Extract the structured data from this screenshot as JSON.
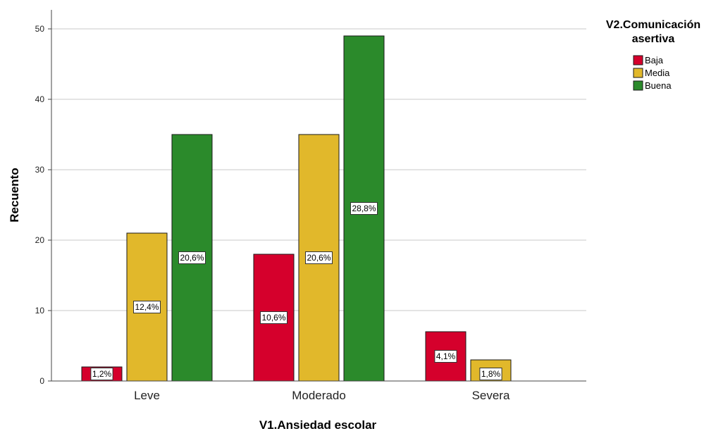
{
  "chart_data": {
    "type": "bar",
    "categories": [
      "Leve",
      "Moderado",
      "Severa"
    ],
    "series": [
      {
        "name": "Baja",
        "color": "#d5002c",
        "values": [
          2,
          18,
          7
        ],
        "labels": [
          "1,2%",
          "10,6%",
          "4,1%"
        ]
      },
      {
        "name": "Media",
        "color": "#e1b82b",
        "values": [
          21,
          35,
          3
        ],
        "labels": [
          "12,4%",
          "20,6%",
          "1,8%"
        ]
      },
      {
        "name": "Buena",
        "color": "#2b8a2b",
        "values": [
          35,
          49,
          0
        ],
        "labels": [
          "20,6%",
          "28,8%",
          ""
        ]
      }
    ],
    "xlabel": "V1.Ansiedad escolar",
    "ylabel": "Recuento",
    "ylim": [
      0,
      50
    ],
    "yticks": [
      0,
      10,
      20,
      30,
      40,
      50
    ],
    "grid": true,
    "legend": {
      "title_lines": [
        "V2.Comunicación",
        "asertiva"
      ],
      "placement": "top-right"
    }
  }
}
